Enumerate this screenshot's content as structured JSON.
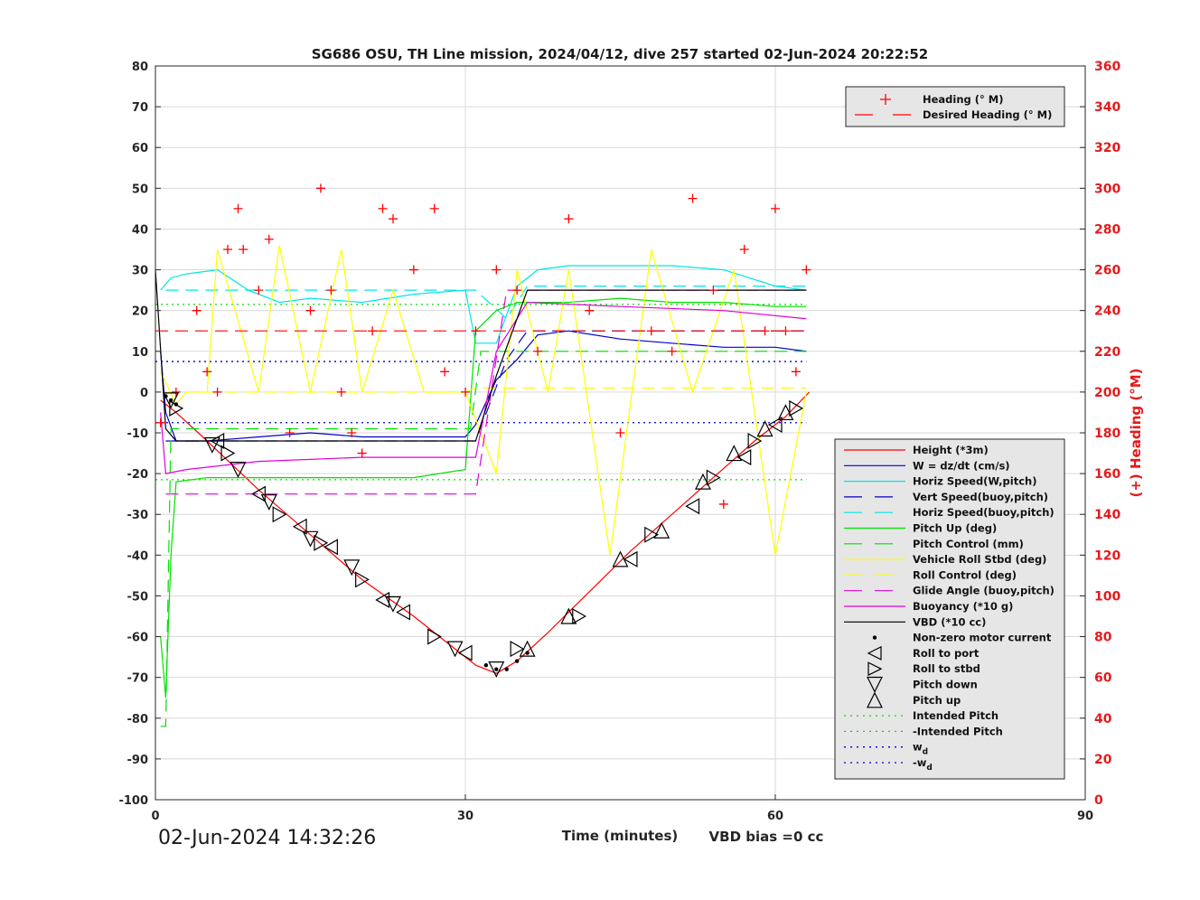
{
  "title": "SG686 OSU, TH Line mission, 2024/04/12, dive 257 started 02-Jun-2024 20:22:52",
  "timestamp": "02-Jun-2024 14:32:26",
  "xlabel": "Time (minutes)",
  "vbd_bias": "VBD bias =0 cc",
  "ylabel_right": "(+) Heading (°M)",
  "colors": {
    "red": "#ff0000",
    "blue": "#0000cc",
    "cyan": "#00e5e5",
    "green": "#00e000",
    "yellow": "#ffff00",
    "magenta": "#e000e0",
    "black": "#000000",
    "grid": "#d9d9d9"
  },
  "chart_data": {
    "type": "line",
    "xlim": [
      0,
      90
    ],
    "ylim_left": [
      -100,
      80
    ],
    "ylim_right": [
      0,
      360
    ],
    "xticks": [
      0,
      30,
      60,
      90
    ],
    "yticks_left": [
      80,
      70,
      60,
      50,
      40,
      30,
      20,
      10,
      0,
      -10,
      -20,
      -30,
      -40,
      -50,
      -60,
      -70,
      -80,
      -90,
      -100
    ],
    "yticks_right": [
      360,
      340,
      320,
      300,
      280,
      260,
      240,
      220,
      200,
      180,
      160,
      140,
      120,
      100,
      80,
      60,
      40,
      20,
      0
    ],
    "grid": true,
    "legend_top": {
      "position": "top-right",
      "entries": [
        "Heading (° M)",
        "Desired Heading (° M)"
      ]
    },
    "legend_main": {
      "position": "bottom-right",
      "entries": [
        "Height (*3m)",
        "W = dz/dt (cm/s)",
        "Horiz Speed(W,pitch)",
        "Vert Speed(buoy,pitch)",
        "Horiz Speed(buoy,pitch)",
        "Pitch Up (deg)",
        "Pitch Control (mm)",
        "Vehicle Roll Stbd (deg)",
        "Roll Control (deg)",
        "Glide Angle (buoy,pitch)",
        "Buoyancy (*10 g)",
        "VBD (*10 cc)",
        "Non-zero motor current",
        "Roll to port",
        "Roll to stbd",
        "Pitch down",
        "Pitch up",
        "Intended Pitch",
        "-Intended Pitch",
        "w",
        "-w"
      ],
      "subscript": "d"
    },
    "series": [
      {
        "name": "Height (*3m)",
        "axis": "left",
        "x": [
          0.5,
          2,
          5,
          10,
          15,
          20,
          25,
          28,
          31,
          33,
          35,
          38,
          42,
          46,
          50,
          54,
          58,
          61,
          63.3
        ],
        "y": [
          -2,
          -5,
          -12,
          -24,
          -35,
          -46,
          -55,
          -61,
          -67,
          -69,
          -66,
          -59,
          -49,
          -39,
          -30,
          -21,
          -12,
          -6,
          0
        ]
      },
      {
        "name": "W = dz/dt (cm/s)",
        "axis": "left",
        "x": [
          0.5,
          1,
          2,
          5,
          10,
          15,
          20,
          25,
          30,
          31,
          33,
          35,
          37,
          40,
          45,
          50,
          55,
          60,
          63
        ],
        "y": [
          10,
          -5,
          -12,
          -12,
          -11,
          -10,
          -11,
          -11,
          -11,
          -8,
          3,
          8,
          14,
          15,
          13,
          12,
          11,
          11,
          10
        ]
      },
      {
        "name": "Horiz Speed(W,pitch)",
        "axis": "left",
        "x": [
          0.5,
          1.5,
          3,
          6,
          9,
          12,
          15,
          20,
          25,
          30,
          31,
          33,
          35,
          37,
          40,
          45,
          50,
          55,
          60,
          63
        ],
        "y": [
          25,
          28,
          29,
          30,
          25,
          22,
          23,
          22,
          24,
          25,
          12,
          12,
          26,
          30,
          31,
          31,
          31,
          30,
          26,
          25
        ]
      },
      {
        "name": "Vert Speed(buoy,pitch)",
        "axis": "left",
        "x": [
          1,
          2,
          31,
          34,
          36,
          63
        ],
        "y": [
          -12,
          -12,
          -12,
          8,
          15,
          15
        ]
      },
      {
        "name": "Horiz Speed(buoy,pitch)",
        "axis": "left",
        "x": [
          1,
          2,
          31,
          34,
          36,
          63
        ],
        "y": [
          25,
          25,
          25,
          18,
          26,
          26
        ]
      },
      {
        "name": "Pitch Up (deg)",
        "axis": "left",
        "x": [
          0.5,
          1,
          1.5,
          2,
          5,
          10,
          15,
          20,
          25,
          30,
          31,
          33,
          35,
          36,
          40,
          45,
          50,
          55,
          60,
          63
        ],
        "y": [
          -60,
          -75,
          -40,
          -22,
          -21,
          -21,
          -21,
          -21,
          -21,
          -19,
          15,
          20,
          22,
          22,
          22,
          23,
          22,
          22,
          21,
          21
        ]
      },
      {
        "name": "Pitch Control (mm)",
        "axis": "left",
        "x": [
          0.5,
          1,
          1.5,
          30.5,
          31.5,
          63
        ],
        "y": [
          -82,
          -82,
          -9,
          -9,
          10,
          10
        ]
      },
      {
        "name": "Vehicle Roll Stbd (deg)",
        "axis": "left",
        "x": [
          0.5,
          2,
          3,
          5,
          6,
          10,
          12,
          15,
          18,
          20,
          23,
          26,
          30,
          33,
          35,
          38,
          40,
          44,
          48,
          52,
          56,
          60,
          63
        ],
        "y": [
          5,
          -3,
          0,
          0,
          35,
          0,
          36,
          0,
          35,
          0,
          25,
          0,
          0,
          -20,
          30,
          0,
          30,
          -40,
          35,
          0,
          30,
          -40,
          0
        ]
      },
      {
        "name": "Roll Control (deg)",
        "axis": "left",
        "x": [
          1,
          2,
          30,
          31,
          63
        ],
        "y": [
          0,
          0,
          0,
          1,
          1
        ]
      },
      {
        "name": "Glide Angle (buoy,pitch)",
        "axis": "left",
        "x": [
          1,
          2,
          31,
          34,
          36,
          63
        ],
        "y": [
          -25,
          -25,
          -25,
          25,
          25,
          25
        ]
      },
      {
        "name": "Buoyancy (*10 g)",
        "axis": "left",
        "x": [
          0.5,
          1,
          3,
          10,
          20,
          31,
          33,
          36,
          45,
          55,
          63
        ],
        "y": [
          -5,
          -20,
          -19,
          -17,
          -16,
          -16,
          10,
          22,
          21,
          20,
          18
        ]
      },
      {
        "name": "VBD (*10 cc)",
        "axis": "left",
        "x": [
          0,
          1,
          2,
          31,
          33,
          36,
          63
        ],
        "y": [
          30,
          -9,
          -12,
          -12,
          4,
          25,
          25
        ]
      },
      {
        "name": "Heading (° M)",
        "axis": "right",
        "x": [
          0.5,
          2,
          4,
          5,
          6,
          7,
          8,
          8.5,
          10,
          11,
          13,
          15,
          16,
          17,
          18,
          19,
          20,
          21,
          22,
          23,
          25,
          27,
          28,
          30,
          31,
          33,
          35,
          37,
          40,
          42,
          45,
          48,
          50,
          52,
          54,
          55,
          57,
          59,
          60,
          61,
          62,
          63
        ],
        "y": [
          185,
          200,
          240,
          210,
          200,
          270,
          290,
          270,
          250,
          275,
          180,
          240,
          300,
          250,
          200,
          180,
          170,
          230,
          290,
          285,
          260,
          290,
          210,
          200,
          230,
          260,
          250,
          220,
          285,
          240,
          180,
          230,
          220,
          295,
          250,
          145,
          270,
          230,
          290,
          230,
          210,
          260
        ]
      },
      {
        "name": "Desired Heading (° M)",
        "axis": "right",
        "x": [
          0,
          31,
          31.5,
          63
        ],
        "y": [
          230,
          230,
          230,
          230
        ]
      }
    ],
    "reference_lines": [
      {
        "name": "Intended Pitch",
        "y": 21.5,
        "x": [
          0,
          63
        ]
      },
      {
        "name": "-Intended Pitch",
        "y": -21.5,
        "x": [
          0,
          63
        ]
      },
      {
        "name": "w_d",
        "y": 7.5,
        "x": [
          0,
          63
        ]
      },
      {
        "name": "-w_d",
        "y": -7.5,
        "x": [
          0,
          63
        ]
      }
    ],
    "markers": {
      "roll_to_port": [
        [
          6,
          -12
        ],
        [
          10,
          -25
        ],
        [
          14,
          -33
        ],
        [
          17,
          -38
        ],
        [
          22,
          -51
        ],
        [
          24,
          -54
        ],
        [
          30,
          -64
        ],
        [
          46,
          -41
        ],
        [
          52,
          -28
        ],
        [
          57,
          -16
        ],
        [
          60,
          -8
        ]
      ],
      "roll_to_stbd": [
        [
          2,
          -4
        ],
        [
          7,
          -15
        ],
        [
          12,
          -30
        ],
        [
          16,
          -37
        ],
        [
          20,
          -46
        ],
        [
          27,
          -60
        ],
        [
          35,
          -63
        ],
        [
          41,
          -55
        ],
        [
          48,
          -35
        ],
        [
          54,
          -21
        ],
        [
          58,
          -12
        ],
        [
          62,
          -4
        ]
      ],
      "pitch_down": [
        [
          1.5,
          -2
        ],
        [
          5.5,
          -13
        ],
        [
          8,
          -19
        ],
        [
          11,
          -27
        ],
        [
          15,
          -36
        ],
        [
          19,
          -43
        ],
        [
          23,
          -52
        ],
        [
          29,
          -63
        ],
        [
          33,
          -68
        ]
      ],
      "pitch_up": [
        [
          36,
          -63
        ],
        [
          40,
          -55
        ],
        [
          45,
          -41
        ],
        [
          49,
          -34
        ],
        [
          53,
          -22
        ],
        [
          56,
          -15
        ],
        [
          59,
          -9
        ],
        [
          61,
          -5
        ]
      ],
      "motor_current": [
        [
          1,
          -1
        ],
        [
          1.5,
          -2
        ],
        [
          2,
          -3
        ],
        [
          32,
          -67
        ],
        [
          33,
          -68
        ],
        [
          34,
          -68
        ],
        [
          35,
          -66
        ],
        [
          36,
          -64
        ]
      ]
    }
  }
}
